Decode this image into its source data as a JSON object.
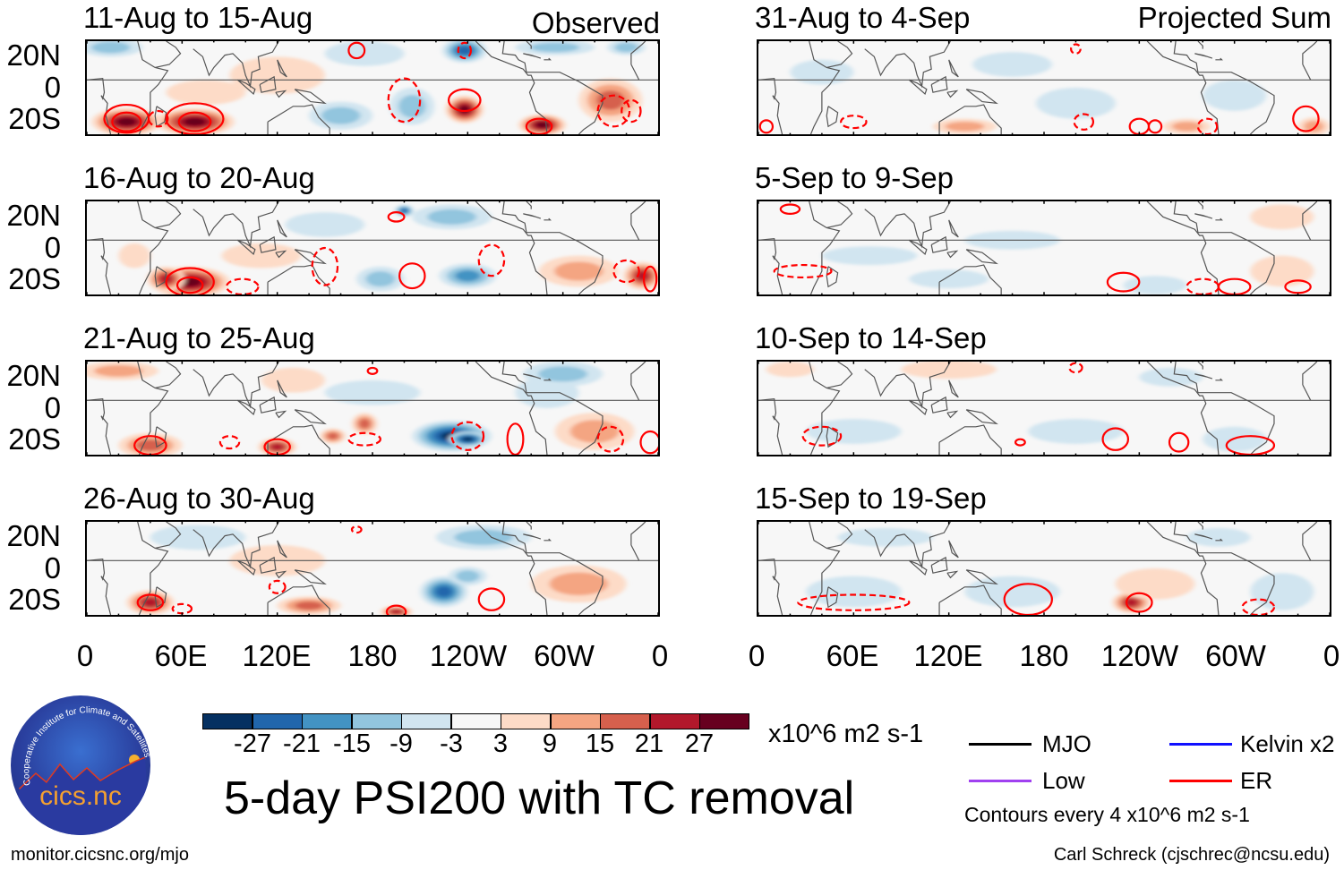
{
  "figure": {
    "main_title": "5-day PSI200 with TC removal",
    "left_header": "Observed",
    "right_header": "Projected Sum",
    "footer_left": "monitor.cicsnc.org/mjo",
    "footer_right": "Carl Schreck (cjschrec@ncsu.edu)",
    "logo_text": "cics.nc",
    "logo_ring_text": "Cooperative Institute for Climate and Satellites"
  },
  "chart_data": {
    "type": "heatmap",
    "variable": "200-hPa streamfunction anomaly",
    "lat_range": [
      -30,
      30
    ],
    "lon_range": [
      0,
      360
    ],
    "lat_labels": [
      "20N",
      "0",
      "20S"
    ],
    "lon_labels": [
      "0",
      "60E",
      "120E",
      "180",
      "120W",
      "60W",
      "0"
    ],
    "panels": [
      {
        "title": "11-Aug to 15-Aug",
        "group": "Observed"
      },
      {
        "title": "16-Aug to 20-Aug",
        "group": "Observed"
      },
      {
        "title": "21-Aug to 25-Aug",
        "group": "Observed"
      },
      {
        "title": "26-Aug to 30-Aug",
        "group": "Observed"
      },
      {
        "title": "31-Aug to 4-Sep",
        "group": "Projected Sum"
      },
      {
        "title": "5-Sep to 9-Sep",
        "group": "Projected Sum"
      },
      {
        "title": "10-Sep to 14-Sep",
        "group": "Projected Sum"
      },
      {
        "title": "15-Sep to 19-Sep",
        "group": "Projected Sum"
      }
    ],
    "colorbar": {
      "labels": [
        "-27",
        "-21",
        "-15",
        "-9",
        "-3",
        "3",
        "9",
        "15",
        "21",
        "27"
      ],
      "colors": [
        "#053061",
        "#2166ac",
        "#4393c3",
        "#92c5de",
        "#d1e5f0",
        "#f7f7f7",
        "#fddbc7",
        "#f4a582",
        "#d6604d",
        "#b2182b",
        "#67001f"
      ],
      "units": "x10^6 m2 s-1"
    },
    "legend": [
      {
        "label": "MJO",
        "color": "#000000"
      },
      {
        "label": "Kelvin x2",
        "color": "#0000ff"
      },
      {
        "label": "Low",
        "color": "#a040f0"
      },
      {
        "label": "ER",
        "color": "#ff0000"
      }
    ],
    "contour_note": "Contours every 4 x10^6 m2 s-1"
  }
}
